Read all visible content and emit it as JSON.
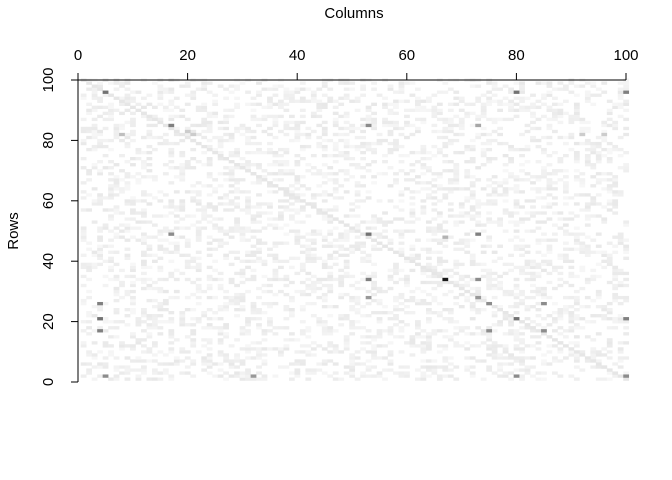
{
  "chart_data": {
    "type": "heatmap",
    "title": "",
    "xlabel": "Columns",
    "ylabel": "Rows",
    "xlim": [
      0,
      100
    ],
    "ylim": [
      0,
      100
    ],
    "x_ticks": [
      "0",
      "20",
      "40",
      "60",
      "80",
      "100"
    ],
    "y_ticks": [
      "0",
      "20",
      "40",
      "60",
      "80",
      "100"
    ],
    "x_axis_position": "top",
    "y_axis_position": "left",
    "grid": false,
    "colormap": "white-to-black grayscale",
    "description": "sparse matrix image, mostly light gray with a diagonal band from top-left to bottom-right",
    "diagonal": true,
    "notable_cells": [
      {
        "x": 5,
        "y": 96,
        "value": 0.55
      },
      {
        "x": 17,
        "y": 85,
        "value": 0.5
      },
      {
        "x": 20,
        "y": 83,
        "value": 0.2
      },
      {
        "x": 53,
        "y": 85,
        "value": 0.45
      },
      {
        "x": 17,
        "y": 49,
        "value": 0.45
      },
      {
        "x": 53,
        "y": 49,
        "value": 0.55
      },
      {
        "x": 67,
        "y": 48,
        "value": 0.3
      },
      {
        "x": 73,
        "y": 49,
        "value": 0.5
      },
      {
        "x": 67,
        "y": 34,
        "value": 0.9
      },
      {
        "x": 53,
        "y": 34,
        "value": 0.5
      },
      {
        "x": 73,
        "y": 34,
        "value": 0.45
      },
      {
        "x": 53,
        "y": 28,
        "value": 0.4
      },
      {
        "x": 73,
        "y": 28,
        "value": 0.4
      },
      {
        "x": 4,
        "y": 26,
        "value": 0.5
      },
      {
        "x": 4,
        "y": 21,
        "value": 0.55
      },
      {
        "x": 4,
        "y": 17,
        "value": 0.5
      },
      {
        "x": 80,
        "y": 21,
        "value": 0.55
      },
      {
        "x": 85,
        "y": 26,
        "value": 0.45
      },
      {
        "x": 85,
        "y": 17,
        "value": 0.45
      },
      {
        "x": 75,
        "y": 17,
        "value": 0.45
      },
      {
        "x": 75,
        "y": 26,
        "value": 0.45
      },
      {
        "x": 80,
        "y": 96,
        "value": 0.55
      },
      {
        "x": 100,
        "y": 96,
        "value": 0.5
      },
      {
        "x": 100,
        "y": 21,
        "value": 0.5
      },
      {
        "x": 5,
        "y": 2,
        "value": 0.45
      },
      {
        "x": 32,
        "y": 2,
        "value": 0.4
      },
      {
        "x": 80,
        "y": 2,
        "value": 0.45
      },
      {
        "x": 100,
        "y": 2,
        "value": 0.45
      },
      {
        "x": 73,
        "y": 85,
        "value": 0.35
      },
      {
        "x": 8,
        "y": 82,
        "value": 0.25
      },
      {
        "x": 21,
        "y": 82,
        "value": 0.2
      },
      {
        "x": 92,
        "y": 82,
        "value": 0.2
      },
      {
        "x": 96,
        "y": 82,
        "value": 0.2
      }
    ]
  }
}
